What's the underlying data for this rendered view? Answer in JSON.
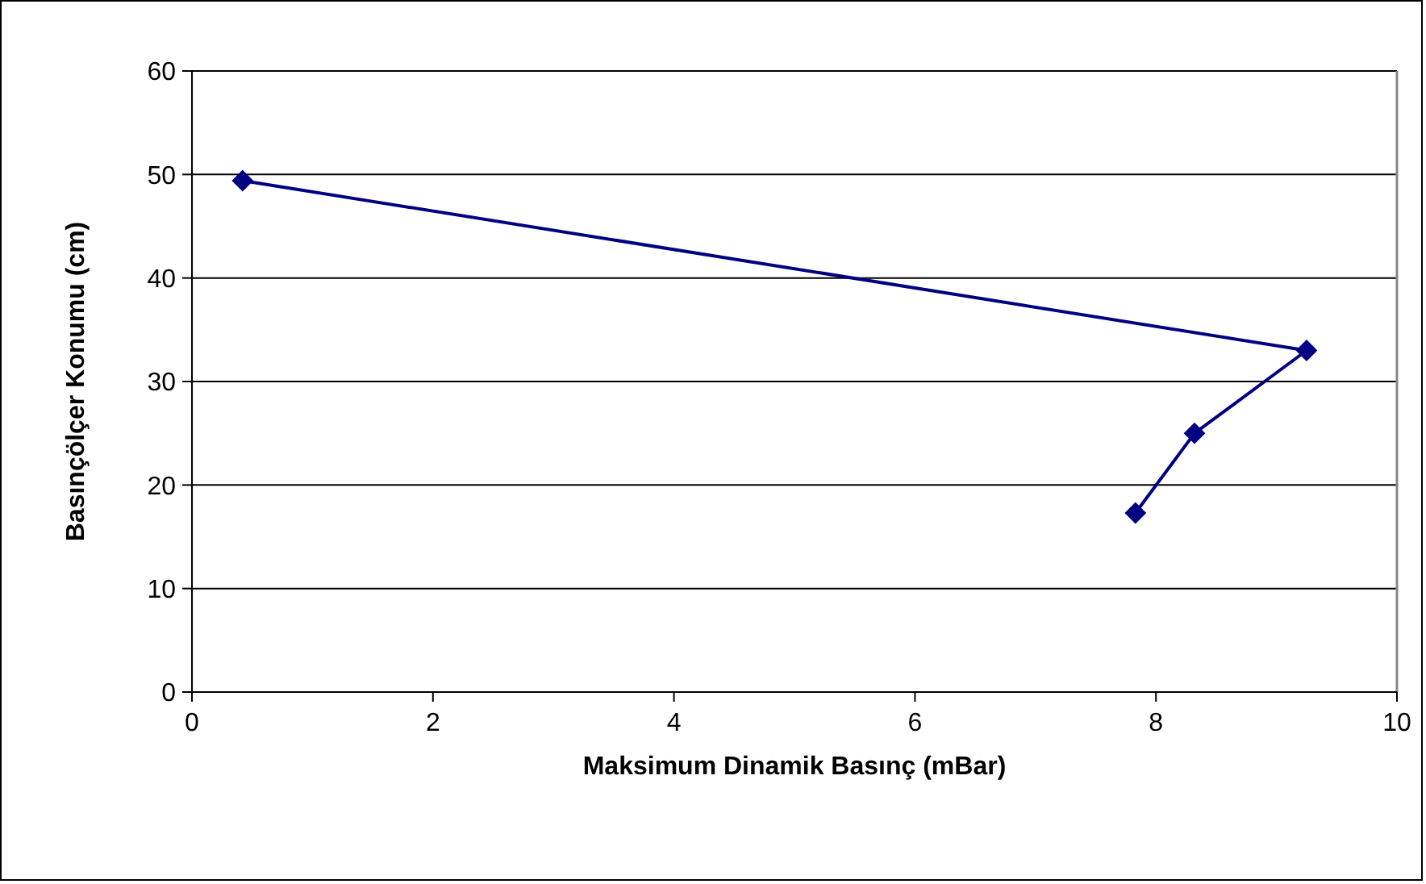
{
  "chart_data": {
    "type": "line",
    "xlabel": "Maksimum Dinamik Basınç (mBar)",
    "ylabel": "Basınçölçer Konumu (cm)",
    "x": [
      0.42,
      9.25,
      8.32,
      7.83
    ],
    "series": [
      {
        "color": "#000080",
        "values": [
          49.4,
          33.0,
          25.0,
          17.3
        ]
      }
    ],
    "xlim": [
      0,
      10
    ],
    "xticks": [
      0,
      2,
      4,
      6,
      8,
      10
    ],
    "ylim": [
      0,
      60
    ],
    "yticks": [
      0,
      10,
      20,
      30,
      40,
      50,
      60
    ],
    "grid": "y",
    "marker": "diamond",
    "line_style": "solid"
  }
}
